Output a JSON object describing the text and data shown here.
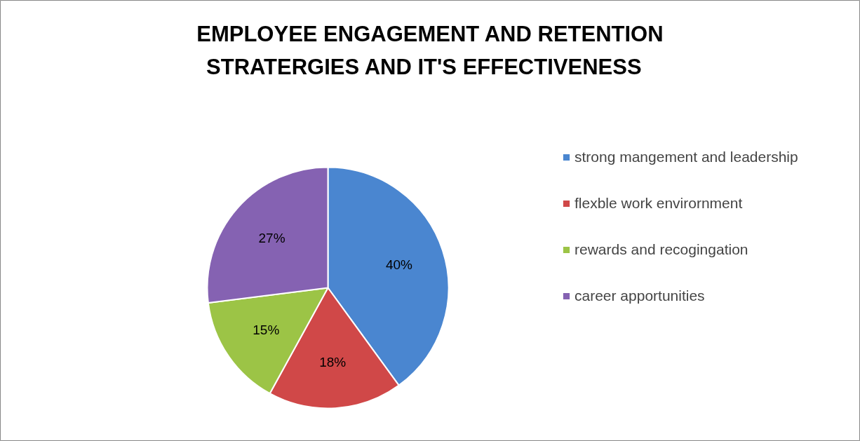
{
  "chart_data": {
    "type": "pie",
    "title": "EMPLOYEE ENGAGEMENT AND RETENTION\nSTRATERGIES   AND IT'S EFFECTIVENESS",
    "categories": [
      "strong mangement and leadership",
      "flexble work envirornment",
      "rewards and recogingation",
      "career apportunities"
    ],
    "values": [
      40,
      18,
      15,
      27
    ],
    "colors": [
      "#4a86d0",
      "#d04848",
      "#9cc446",
      "#8562b2"
    ],
    "value_labels": [
      "40%",
      "18%",
      "15%",
      "27%"
    ],
    "legend": "right"
  }
}
